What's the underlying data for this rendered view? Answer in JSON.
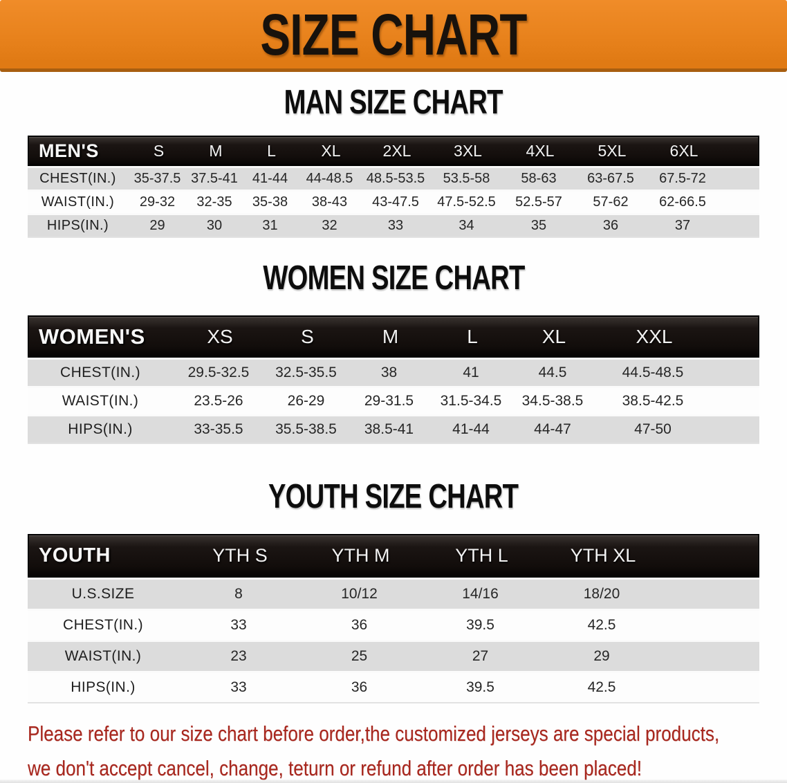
{
  "banner": {
    "title": "SIZE CHART"
  },
  "sections": [
    {
      "id": "men",
      "title": "MAN SIZE CHART",
      "table": {
        "header_label": "MEN'S",
        "columns": [
          "S",
          "M",
          "L",
          "XL",
          "2XL",
          "3XL",
          "4XL",
          "5XL",
          "6XL"
        ],
        "rows": [
          {
            "label": "CHEST(IN.)",
            "values": [
              "35-37.5",
              "37.5-41",
              "41-44",
              "44-48.5",
              "48.5-53.5",
              "53.5-58",
              "58-63",
              "63-67.5",
              "67.5-72"
            ]
          },
          {
            "label": "WAIST(IN.)",
            "values": [
              "29-32",
              "32-35",
              "35-38",
              "38-43",
              "43-47.5",
              "47.5-52.5",
              "52.5-57",
              "57-62",
              "62-66.5"
            ]
          },
          {
            "label": "HIPS(IN.)",
            "values": [
              "29",
              "30",
              "31",
              "32",
              "33",
              "34",
              "35",
              "36",
              "37"
            ]
          }
        ]
      }
    },
    {
      "id": "women",
      "title": "WOMEN SIZE CHART",
      "table": {
        "header_label": "WOMEN'S",
        "columns": [
          "XS",
          "S",
          "M",
          "L",
          "XL",
          "XXL"
        ],
        "rows": [
          {
            "label": "CHEST(IN.)",
            "values": [
              "29.5-32.5",
              "32.5-35.5",
              "38",
              "41",
              "44.5",
              "44.5-48.5"
            ]
          },
          {
            "label": "WAIST(IN.)",
            "values": [
              "23.5-26",
              "26-29",
              "29-31.5",
              "31.5-34.5",
              "34.5-38.5",
              "38.5-42.5"
            ]
          },
          {
            "label": "HIPS(IN.)",
            "values": [
              "33-35.5",
              "35.5-38.5",
              "38.5-41",
              "41-44",
              "44-47",
              "47-50"
            ]
          }
        ]
      }
    },
    {
      "id": "youth",
      "title": "YOUTH SIZE CHART",
      "table": {
        "header_label": "YOUTH",
        "columns": [
          "YTH S",
          "YTH M",
          "YTH L",
          "YTH XL"
        ],
        "rows": [
          {
            "label": "U.S.SIZE",
            "values": [
              "8",
              "10/12",
              "14/16",
              "18/20"
            ]
          },
          {
            "label": "CHEST(IN.)",
            "values": [
              "33",
              "36",
              "39.5",
              "42.5"
            ]
          },
          {
            "label": "WAIST(IN.)",
            "values": [
              "23",
              "25",
              "27",
              "29"
            ]
          },
          {
            "label": "HIPS(IN.)",
            "values": [
              "33",
              "36",
              "39.5",
              "42.5"
            ]
          }
        ]
      }
    }
  ],
  "footer": {
    "line1": "Please refer to our size chart before order,the customized jerseys are special products,",
    "line2": "we don't accept cancel, change, teturn or refund after order has been placed!"
  },
  "colors": {
    "banner_orange": "#e8821c",
    "banner_border": "#a85e10",
    "header_black": "#171211",
    "row_gray": "#dcdcdc",
    "row_white": "#fdfdfd",
    "disclaimer_red": "#a8271e",
    "title_black": "#0d0d0d"
  }
}
